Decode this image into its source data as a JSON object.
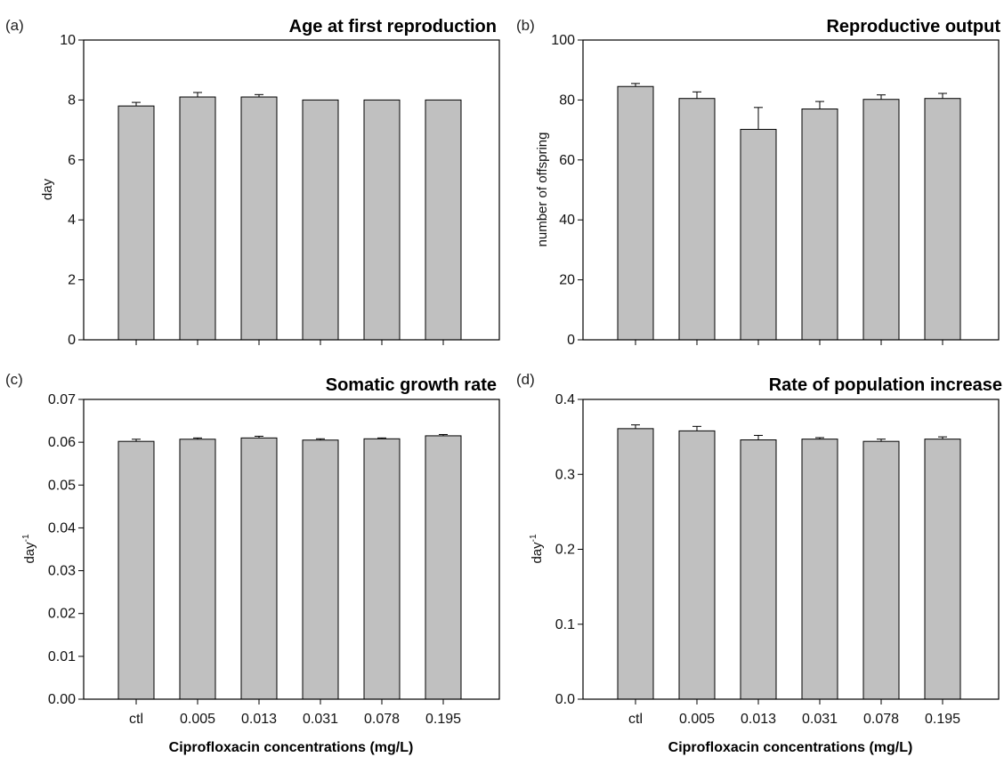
{
  "chart_data": [
    {
      "type": "bar",
      "panel_label": "(a)",
      "title": "Age at first reproduction",
      "ylabel": "day",
      "ylabel_sup": "",
      "xlabel": "",
      "categories": [
        "ctl",
        "0.005",
        "0.013",
        "0.031",
        "0.078",
        "0.195"
      ],
      "show_category_labels": false,
      "values": [
        7.8,
        8.1,
        8.1,
        8.0,
        8.0,
        8.0
      ],
      "errors": [
        0.12,
        0.15,
        0.08,
        0.0,
        0.0,
        0.0
      ],
      "ylim": [
        0,
        10
      ],
      "yticks": [
        "0",
        "2",
        "4",
        "6",
        "8",
        "10"
      ],
      "bar_color": "#c0c0c0",
      "grid": false
    },
    {
      "type": "bar",
      "panel_label": "(b)",
      "title": "Reproductive output",
      "ylabel": "number of offspring",
      "ylabel_sup": "",
      "xlabel": "",
      "categories": [
        "ctl",
        "0.005",
        "0.013",
        "0.031",
        "0.078",
        "0.195"
      ],
      "show_category_labels": false,
      "values": [
        84.5,
        80.5,
        70.2,
        77.0,
        80.2,
        80.5
      ],
      "errors": [
        1.0,
        2.2,
        7.3,
        2.5,
        1.5,
        1.7
      ],
      "ylim": [
        0,
        100
      ],
      "yticks": [
        "0",
        "20",
        "40",
        "60",
        "80",
        "100"
      ],
      "bar_color": "#c0c0c0",
      "grid": false
    },
    {
      "type": "bar",
      "panel_label": "(c)",
      "title": "Somatic growth rate",
      "ylabel": "day",
      "ylabel_sup": "-1",
      "xlabel": "Ciprofloxacin concentrations (mg/L)",
      "categories": [
        "ctl",
        "0.005",
        "0.013",
        "0.031",
        "0.078",
        "0.195"
      ],
      "show_category_labels": true,
      "values": [
        0.0602,
        0.0607,
        0.061,
        0.0605,
        0.0608,
        0.0615
      ],
      "errors": [
        0.0005,
        0.0003,
        0.0004,
        0.0003,
        0.0002,
        0.0003
      ],
      "ylim": [
        0,
        0.07
      ],
      "yticks": [
        "0.00",
        "0.01",
        "0.02",
        "0.03",
        "0.04",
        "0.05",
        "0.06",
        "0.07"
      ],
      "bar_color": "#c0c0c0",
      "grid": false
    },
    {
      "type": "bar",
      "panel_label": "(d)",
      "title": "Rate of population increase",
      "ylabel": "day",
      "ylabel_sup": "-1",
      "xlabel": "Ciprofloxacin concentrations (mg/L)",
      "categories": [
        "ctl",
        "0.005",
        "0.013",
        "0.031",
        "0.078",
        "0.195"
      ],
      "show_category_labels": true,
      "values": [
        0.361,
        0.358,
        0.346,
        0.347,
        0.344,
        0.347
      ],
      "errors": [
        0.005,
        0.006,
        0.006,
        0.002,
        0.003,
        0.003
      ],
      "ylim": [
        0,
        0.4
      ],
      "yticks": [
        "0.0",
        "0.1",
        "0.2",
        "0.3",
        "0.4"
      ],
      "bar_color": "#c0c0c0",
      "grid": false
    }
  ]
}
